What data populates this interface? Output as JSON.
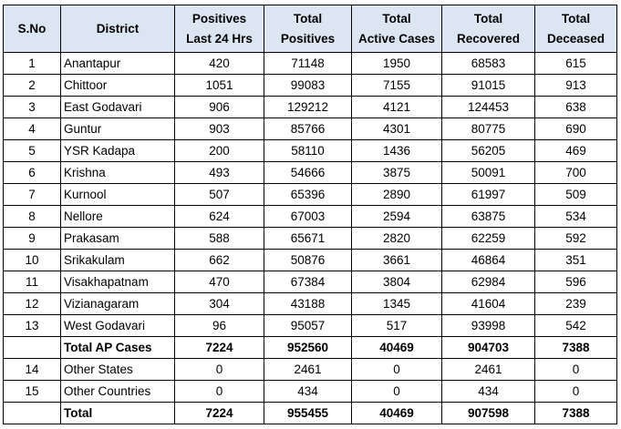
{
  "table": {
    "headers": {
      "sno": "S.No",
      "district": "District",
      "pos24": [
        "Positives",
        "Last 24 Hrs"
      ],
      "tpos": [
        "Total",
        "Positives"
      ],
      "active": [
        "Total",
        "Active Cases"
      ],
      "recovered": [
        "Total",
        "Recovered"
      ],
      "deceased": [
        "Total",
        "Deceased"
      ]
    },
    "rows": [
      {
        "sno": "1",
        "district": "Anantapur",
        "pos24": "420",
        "tpos": "71148",
        "active": "1950",
        "recovered": "68583",
        "deceased": "615"
      },
      {
        "sno": "2",
        "district": "Chittoor",
        "pos24": "1051",
        "tpos": "99083",
        "active": "7155",
        "recovered": "91015",
        "deceased": "913"
      },
      {
        "sno": "3",
        "district": "East Godavari",
        "pos24": "906",
        "tpos": "129212",
        "active": "4121",
        "recovered": "124453",
        "deceased": "638"
      },
      {
        "sno": "4",
        "district": "Guntur",
        "pos24": "903",
        "tpos": "85766",
        "active": "4301",
        "recovered": "80775",
        "deceased": "690"
      },
      {
        "sno": "5",
        "district": "YSR Kadapa",
        "pos24": "200",
        "tpos": "58110",
        "active": "1436",
        "recovered": "56205",
        "deceased": "469"
      },
      {
        "sno": "6",
        "district": "Krishna",
        "pos24": "493",
        "tpos": "54666",
        "active": "3875",
        "recovered": "50091",
        "deceased": "700"
      },
      {
        "sno": "7",
        "district": "Kurnool",
        "pos24": "507",
        "tpos": "65396",
        "active": "2890",
        "recovered": "61997",
        "deceased": "509"
      },
      {
        "sno": "8",
        "district": "Nellore",
        "pos24": "624",
        "tpos": "67003",
        "active": "2594",
        "recovered": "63875",
        "deceased": "534"
      },
      {
        "sno": "9",
        "district": "Prakasam",
        "pos24": "588",
        "tpos": "65671",
        "active": "2820",
        "recovered": "62259",
        "deceased": "592"
      },
      {
        "sno": "10",
        "district": "Srikakulam",
        "pos24": "662",
        "tpos": "50876",
        "active": "3661",
        "recovered": "46864",
        "deceased": "351"
      },
      {
        "sno": "11",
        "district": "Visakhapatnam",
        "pos24": "470",
        "tpos": "67384",
        "active": "3804",
        "recovered": "62984",
        "deceased": "596"
      },
      {
        "sno": "12",
        "district": "Vizianagaram",
        "pos24": "304",
        "tpos": "43188",
        "active": "1345",
        "recovered": "41604",
        "deceased": "239"
      },
      {
        "sno": "13",
        "district": "West Godavari",
        "pos24": "96",
        "tpos": "95057",
        "active": "517",
        "recovered": "93998",
        "deceased": "542"
      }
    ],
    "ap_total": {
      "sno": "",
      "district": "Total AP Cases",
      "pos24": "7224",
      "tpos": "952560",
      "active": "40469",
      "recovered": "904703",
      "deceased": "7388"
    },
    "other_rows": [
      {
        "sno": "14",
        "district": "Other States",
        "pos24": "0",
        "tpos": "2461",
        "active": "0",
        "recovered": "2461",
        "deceased": "0"
      },
      {
        "sno": "15",
        "district": "Other Countries",
        "pos24": "0",
        "tpos": "434",
        "active": "0",
        "recovered": "434",
        "deceased": "0"
      }
    ],
    "grand_total": {
      "sno": "",
      "district": "Total",
      "pos24": "7224",
      "tpos": "955455",
      "active": "40469",
      "recovered": "907598",
      "deceased": "7388"
    }
  }
}
